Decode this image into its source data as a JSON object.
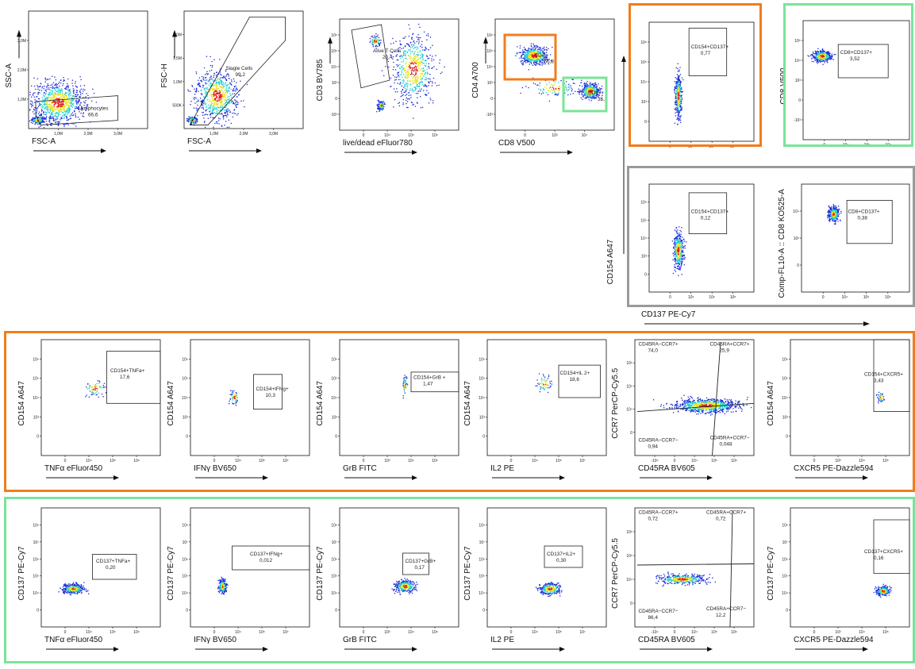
{
  "colors": {
    "cd4_box": "#f07d1b",
    "cd8_box": "#79e49a",
    "control_box": "#9a9a9a",
    "density_low": "#1c2cd8",
    "density_mid": "#1fd0d0",
    "density_high": "#e8e21a",
    "density_peak": "#e21a1a"
  },
  "plots": [
    {
      "xlabel": "FSC-A",
      "ylabel": "SSC-A",
      "xticks": [
        "1,0M",
        "2,0M",
        "3,0M"
      ],
      "yticks": [
        "3,0M",
        "2,0M",
        "1,0M"
      ],
      "gates": [
        {
          "name": "Lymphocytes",
          "value": "66,6"
        }
      ]
    },
    {
      "xlabel": "FSC-A",
      "ylabel": "FSC-H",
      "xticks": [
        "1,0M",
        "2,0M",
        "3,0M"
      ],
      "yticks": [
        "2,0M",
        "1,5M",
        "1,0M",
        "500K"
      ],
      "gates": [
        {
          "name": "Single Cells",
          "value": "99,2"
        }
      ]
    },
    {
      "xlabel": "live/dead eFluor780",
      "ylabel": "CD3 BV785",
      "xticks": [
        "0",
        "10⁴",
        "10⁵",
        "10⁶"
      ],
      "yticks": [
        "10⁶",
        "10⁵",
        "10⁴",
        "10³",
        "0",
        "-10³"
      ],
      "gates": [
        {
          "name": "Alive T Cells",
          "value": "20,4"
        }
      ]
    },
    {
      "xlabel": "CD8 V500",
      "ylabel": "CD4 A700",
      "xticks": [
        "0",
        "10³",
        "10⁴"
      ],
      "yticks": [
        "10⁶",
        "10⁵",
        "10⁴",
        "10³",
        "0",
        "-10³"
      ],
      "gates": [
        {
          "name": "CD4+",
          "value": "56,8"
        },
        {
          "name": "CD8+",
          "value": "35,3"
        }
      ]
    },
    {
      "xlabel": "",
      "ylabel": "",
      "xticks": [
        "0",
        "10⁴",
        "10⁶",
        "10⁸"
      ],
      "yticks": [
        "10⁶",
        "10⁵",
        "10⁴",
        "10³",
        "0"
      ],
      "gates": [
        {
          "name": "CD154+CD137+",
          "value": "0,77"
        }
      ]
    },
    {
      "xlabel": "",
      "ylabel": "CD8 V500",
      "xticks": [
        "0",
        "10⁴",
        "10⁵",
        "10⁷"
      ],
      "yticks": [
        "10⁵",
        "10⁴",
        "10³",
        "0",
        "-10³"
      ],
      "gates": [
        {
          "name": "CD8+CD137+",
          "value": "3,52"
        }
      ]
    },
    {
      "xlabel": "",
      "ylabel": "",
      "xticks": [
        "0",
        "10⁴",
        "10⁶",
        "10⁸"
      ],
      "yticks": [
        "10⁶",
        "10⁵",
        "10⁴",
        "10³",
        "0"
      ],
      "gates": [
        {
          "name": "CD154+CD137+",
          "value": "0,12"
        }
      ]
    },
    {
      "xlabel": "",
      "ylabel": "Comp-FL10-A :: CD8 KO525-A",
      "xticks": [
        "0",
        "10⁴",
        "10⁵",
        "10⁶"
      ],
      "yticks": [
        "10⁴",
        "10³",
        "0"
      ],
      "gates": [
        {
          "name": "CD8+CD137+",
          "value": "0,38"
        }
      ]
    },
    {
      "xlabel": "TNFα eFluor450",
      "ylabel": "CD154 A647",
      "xticks": [
        "0",
        "10⁴",
        "10⁵",
        "10⁶"
      ],
      "yticks": [
        "10⁶",
        "10⁵",
        "10⁴",
        "10³",
        "0"
      ],
      "gates": [
        {
          "name": "CD154+TNFa+",
          "value": "17,6"
        }
      ]
    },
    {
      "xlabel": "IFNγ BV650",
      "ylabel": "CD154 A647",
      "xticks": [
        "0",
        "10⁴",
        "10⁵",
        "10⁷"
      ],
      "yticks": [
        "10⁶",
        "10⁵",
        "10⁴",
        "10³",
        "0"
      ],
      "gates": [
        {
          "name": "CD154+IFNg+",
          "value": "10,3"
        }
      ]
    },
    {
      "xlabel": "GrB FITC",
      "ylabel": "CD154 A647",
      "xticks": [
        "0",
        "10³",
        "10⁴",
        "10⁶"
      ],
      "yticks": [
        "10⁶",
        "10⁵",
        "10⁴",
        "10³",
        "0"
      ],
      "gates": [
        {
          "name": "CD154+GrB +",
          "value": "1,47"
        }
      ]
    },
    {
      "xlabel": "IL2 PE",
      "ylabel": "CD154 A647",
      "xticks": [
        "0",
        "10⁴",
        "10⁵",
        "10⁷"
      ],
      "yticks": [
        "10⁶",
        "10⁵",
        "10⁴",
        "10³",
        "0"
      ],
      "gates": [
        {
          "name": "CD154+IL 2+",
          "value": "18,6"
        }
      ]
    },
    {
      "xlabel": "CD45RA BV605",
      "ylabel": "CCR7 PerCP-Cy5.5",
      "xticks": [
        "-10⁴",
        "0",
        "10⁴",
        "10⁵",
        "10⁶"
      ],
      "yticks": [
        "10⁶",
        "10⁵",
        "10⁴",
        "0"
      ],
      "gates": [
        {
          "name": "CD45RA−CCR7+",
          "value": "74,0"
        },
        {
          "name": "CD45RA+CCR7+",
          "value": "25,9"
        },
        {
          "name": "CD45RA−CCR7−",
          "value": "0,94"
        },
        {
          "name": "CD45RA+CCR7−",
          "value": "0,048"
        }
      ]
    },
    {
      "xlabel": "CXCR5 PE-Dazzle594",
      "ylabel": "CD154 A647",
      "xticks": [
        "0",
        "10³",
        "10⁴",
        "10⁵"
      ],
      "yticks": [
        "10⁶",
        "10⁵",
        "10⁴",
        "10³",
        "0"
      ],
      "gates": [
        {
          "name": "CD154+CXCR5+",
          "value": "3,43"
        }
      ]
    },
    {
      "xlabel": "TNFα eFluor450",
      "ylabel": "CD137 PE-Cy7",
      "xticks": [
        "0",
        "10⁴",
        "10⁵",
        "10⁶"
      ],
      "yticks": [
        "10⁸",
        "10⁷",
        "10⁶",
        "10⁵",
        "10⁴",
        "0"
      ],
      "gates": [
        {
          "name": "CD137+TNFa+",
          "value": "0,20"
        }
      ]
    },
    {
      "xlabel": "IFNγ BV650",
      "ylabel": "CD137 PE-Cy7",
      "xticks": [
        "0",
        "10⁴",
        "10⁵",
        "10⁷"
      ],
      "yticks": [
        "10⁸",
        "10⁷",
        "10⁶",
        "10⁵",
        "10⁴",
        "0"
      ],
      "gates": [
        {
          "name": "CD137+IFNg+",
          "value": "0,012"
        }
      ]
    },
    {
      "xlabel": "GrB FITC",
      "ylabel": "CD137 PE-Cy7",
      "xticks": [
        "0",
        "10³",
        "10⁴",
        "10⁶"
      ],
      "yticks": [
        "10⁸",
        "10⁷",
        "10⁶",
        "10⁵",
        "10⁴",
        "0"
      ],
      "gates": [
        {
          "name": "CD137+GrB+",
          "value": "0,17"
        }
      ]
    },
    {
      "xlabel": "IL2 PE",
      "ylabel": "CD137 PE-Cy7",
      "xticks": [
        "0",
        "10⁴",
        "10⁵",
        "10⁷"
      ],
      "yticks": [
        "10⁸",
        "10⁷",
        "10⁶",
        "10⁵",
        "10⁴",
        "0"
      ],
      "gates": [
        {
          "name": "CD137+IL2+",
          "value": "0,30"
        }
      ]
    },
    {
      "xlabel": "CD45RA BV605",
      "ylabel": "CCR7 PerCP-Cy5.5",
      "xticks": [
        "-10⁴",
        "0",
        "10⁴",
        "10⁵",
        "10⁶"
      ],
      "yticks": [
        "10⁶",
        "10⁵",
        "10⁴",
        "0"
      ],
      "gates": [
        {
          "name": "CD45RA−CCR7+",
          "value": "0,72"
        },
        {
          "name": "CD45RA+CCR7+",
          "value": "0,72"
        },
        {
          "name": "CD45RA−CCR7−",
          "value": "86,4"
        },
        {
          "name": "CD45RA+CCR7−",
          "value": "12,2"
        }
      ]
    },
    {
      "xlabel": "CXCR5 PE-Dazzle594",
      "ylabel": "CD137 PE-Cy7",
      "xticks": [
        "0",
        "10³",
        "10⁴",
        "10⁵"
      ],
      "yticks": [
        "10⁸",
        "10⁷",
        "10⁶",
        "10⁵",
        "10⁴",
        "0"
      ],
      "gates": [
        {
          "name": "CD137+CXCR5+",
          "value": "0,16"
        }
      ]
    }
  ],
  "shared_labels": {
    "ylabel_control": "CD154 A647",
    "xlabel_control": "CD137 PE-Cy7"
  },
  "chart_data": [
    {
      "type": "scatter",
      "title": "",
      "xlabel": "FSC-A",
      "ylabel": "SSC-A",
      "gates": [
        {
          "name": "Lymphocytes",
          "percent": 66.6
        }
      ]
    },
    {
      "type": "scatter",
      "title": "",
      "xlabel": "FSC-A",
      "ylabel": "FSC-H",
      "gates": [
        {
          "name": "Single Cells",
          "percent": 99.2
        }
      ]
    },
    {
      "type": "scatter",
      "title": "",
      "xlabel": "live/dead eFluor780",
      "ylabel": "CD3 BV785",
      "gates": [
        {
          "name": "Alive T Cells",
          "percent": 20.4
        }
      ]
    },
    {
      "type": "scatter",
      "title": "",
      "xlabel": "CD8 V500",
      "ylabel": "CD4 A700",
      "gates": [
        {
          "name": "CD4+",
          "percent": 56.8
        },
        {
          "name": "CD8+",
          "percent": 35.3
        }
      ]
    },
    {
      "type": "scatter",
      "title": "",
      "xlabel": "CD137 PE-Cy7",
      "ylabel": "CD154 A647",
      "gates": [
        {
          "name": "CD154+CD137+",
          "percent": 0.77
        }
      ]
    },
    {
      "type": "scatter",
      "title": "",
      "xlabel": "CD137 PE-Cy7",
      "ylabel": "CD8 V500",
      "gates": [
        {
          "name": "CD8+CD137+",
          "percent": 3.52
        }
      ]
    },
    {
      "type": "scatter",
      "title": "",
      "xlabel": "CD137 PE-Cy7",
      "ylabel": "CD154 A647",
      "gates": [
        {
          "name": "CD154+CD137+",
          "percent": 0.12
        }
      ]
    },
    {
      "type": "scatter",
      "title": "",
      "xlabel": "CD137 PE-Cy7",
      "ylabel": "Comp-FL10-A :: CD8 KO525-A",
      "gates": [
        {
          "name": "CD8+CD137+",
          "percent": 0.38
        }
      ]
    },
    {
      "type": "scatter",
      "title": "",
      "xlabel": "TNFα eFluor450",
      "ylabel": "CD154 A647",
      "gates": [
        {
          "name": "CD154+TNFa+",
          "percent": 17.6
        }
      ]
    },
    {
      "type": "scatter",
      "title": "",
      "xlabel": "IFNγ BV650",
      "ylabel": "CD154 A647",
      "gates": [
        {
          "name": "CD154+IFNg+",
          "percent": 10.3
        }
      ]
    },
    {
      "type": "scatter",
      "title": "",
      "xlabel": "GrB FITC",
      "ylabel": "CD154 A647",
      "gates": [
        {
          "name": "CD154+GrB +",
          "percent": 1.47
        }
      ]
    },
    {
      "type": "scatter",
      "title": "",
      "xlabel": "IL2 PE",
      "ylabel": "CD154 A647",
      "gates": [
        {
          "name": "CD154+IL 2+",
          "percent": 18.6
        }
      ]
    },
    {
      "type": "scatter",
      "title": "",
      "xlabel": "CD45RA BV605",
      "ylabel": "CCR7 PerCP-Cy5.5",
      "gates": [
        {
          "name": "CD45RA−CCR7+",
          "percent": 74.0
        },
        {
          "name": "CD45RA+CCR7+",
          "percent": 25.9
        },
        {
          "name": "CD45RA−CCR7−",
          "percent": 0.94
        },
        {
          "name": "CD45RA+CCR7−",
          "percent": 0.048
        }
      ]
    },
    {
      "type": "scatter",
      "title": "",
      "xlabel": "CXCR5 PE-Dazzle594",
      "ylabel": "CD154 A647",
      "gates": [
        {
          "name": "CD154+CXCR5+",
          "percent": 3.43
        }
      ]
    },
    {
      "type": "scatter",
      "title": "",
      "xlabel": "TNFα eFluor450",
      "ylabel": "CD137 PE-Cy7",
      "gates": [
        {
          "name": "CD137+TNFa+",
          "percent": 0.2
        }
      ]
    },
    {
      "type": "scatter",
      "title": "",
      "xlabel": "IFNγ BV650",
      "ylabel": "CD137 PE-Cy7",
      "gates": [
        {
          "name": "CD137+IFNg+",
          "percent": 0.012
        }
      ]
    },
    {
      "type": "scatter",
      "title": "",
      "xlabel": "GrB FITC",
      "ylabel": "CD137 PE-Cy7",
      "gates": [
        {
          "name": "CD137+GrB+",
          "percent": 0.17
        }
      ]
    },
    {
      "type": "scatter",
      "title": "",
      "xlabel": "IL2 PE",
      "ylabel": "CD137 PE-Cy7",
      "gates": [
        {
          "name": "CD137+IL2+",
          "percent": 0.3
        }
      ]
    },
    {
      "type": "scatter",
      "title": "",
      "xlabel": "CD45RA BV605",
      "ylabel": "CCR7 PerCP-Cy5.5",
      "gates": [
        {
          "name": "CD45RA−CCR7+",
          "percent": 0.72
        },
        {
          "name": "CD45RA+CCR7+",
          "percent": 0.72
        },
        {
          "name": "CD45RA−CCR7−",
          "percent": 86.4
        },
        {
          "name": "CD45RA+CCR7−",
          "percent": 12.2
        }
      ]
    },
    {
      "type": "scatter",
      "title": "",
      "xlabel": "CXCR5 PE-Dazzle594",
      "ylabel": "CD137 PE-Cy7",
      "gates": [
        {
          "name": "CD137+CXCR5+",
          "percent": 0.16
        }
      ]
    }
  ]
}
